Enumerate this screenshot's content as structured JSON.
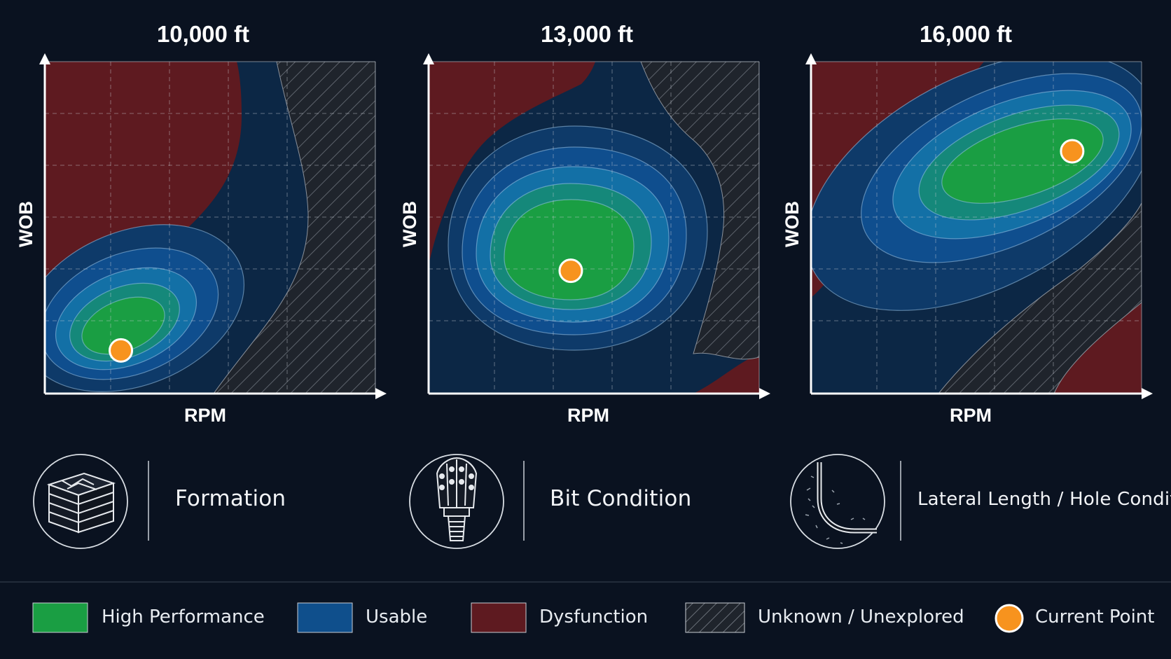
{
  "panels": [
    {
      "title": "10,000 ft",
      "x_label": "RPM",
      "y_label": "WOB",
      "current_point": {
        "rpm": 0.23,
        "wob": 0.13
      }
    },
    {
      "title": "13,000 ft",
      "x_label": "RPM",
      "y_label": "WOB",
      "current_point": {
        "rpm": 0.43,
        "wob": 0.37
      }
    },
    {
      "title": "16,000 ft",
      "x_label": "RPM",
      "y_label": "WOB",
      "current_point": {
        "rpm": 0.79,
        "wob": 0.73
      }
    }
  ],
  "factors": [
    {
      "label": "Formation",
      "icon": "formation-layers-icon"
    },
    {
      "label": "Bit Condition",
      "icon": "drill-bit-icon"
    },
    {
      "label": "Lateral Length / Hole Condition",
      "icon": "lateral-wellbore-icon"
    }
  ],
  "legend": [
    {
      "label": "High Performance",
      "color": "#1a9e43"
    },
    {
      "label": "Usable",
      "color": "#0f4f8c"
    },
    {
      "label": "Dysfunction",
      "color": "#5e1a20"
    },
    {
      "label": "Unknown / Unexplored",
      "color": "#20252d"
    },
    {
      "label": "Current Point",
      "color": "#f7931e"
    }
  ],
  "colors": {
    "background": "#0a1220",
    "high_performance": "#1a9e43",
    "usable": "#0f4f8c",
    "dysfunction": "#5e1a20",
    "unknown": "#20252d",
    "current_point": "#f7931e"
  }
}
